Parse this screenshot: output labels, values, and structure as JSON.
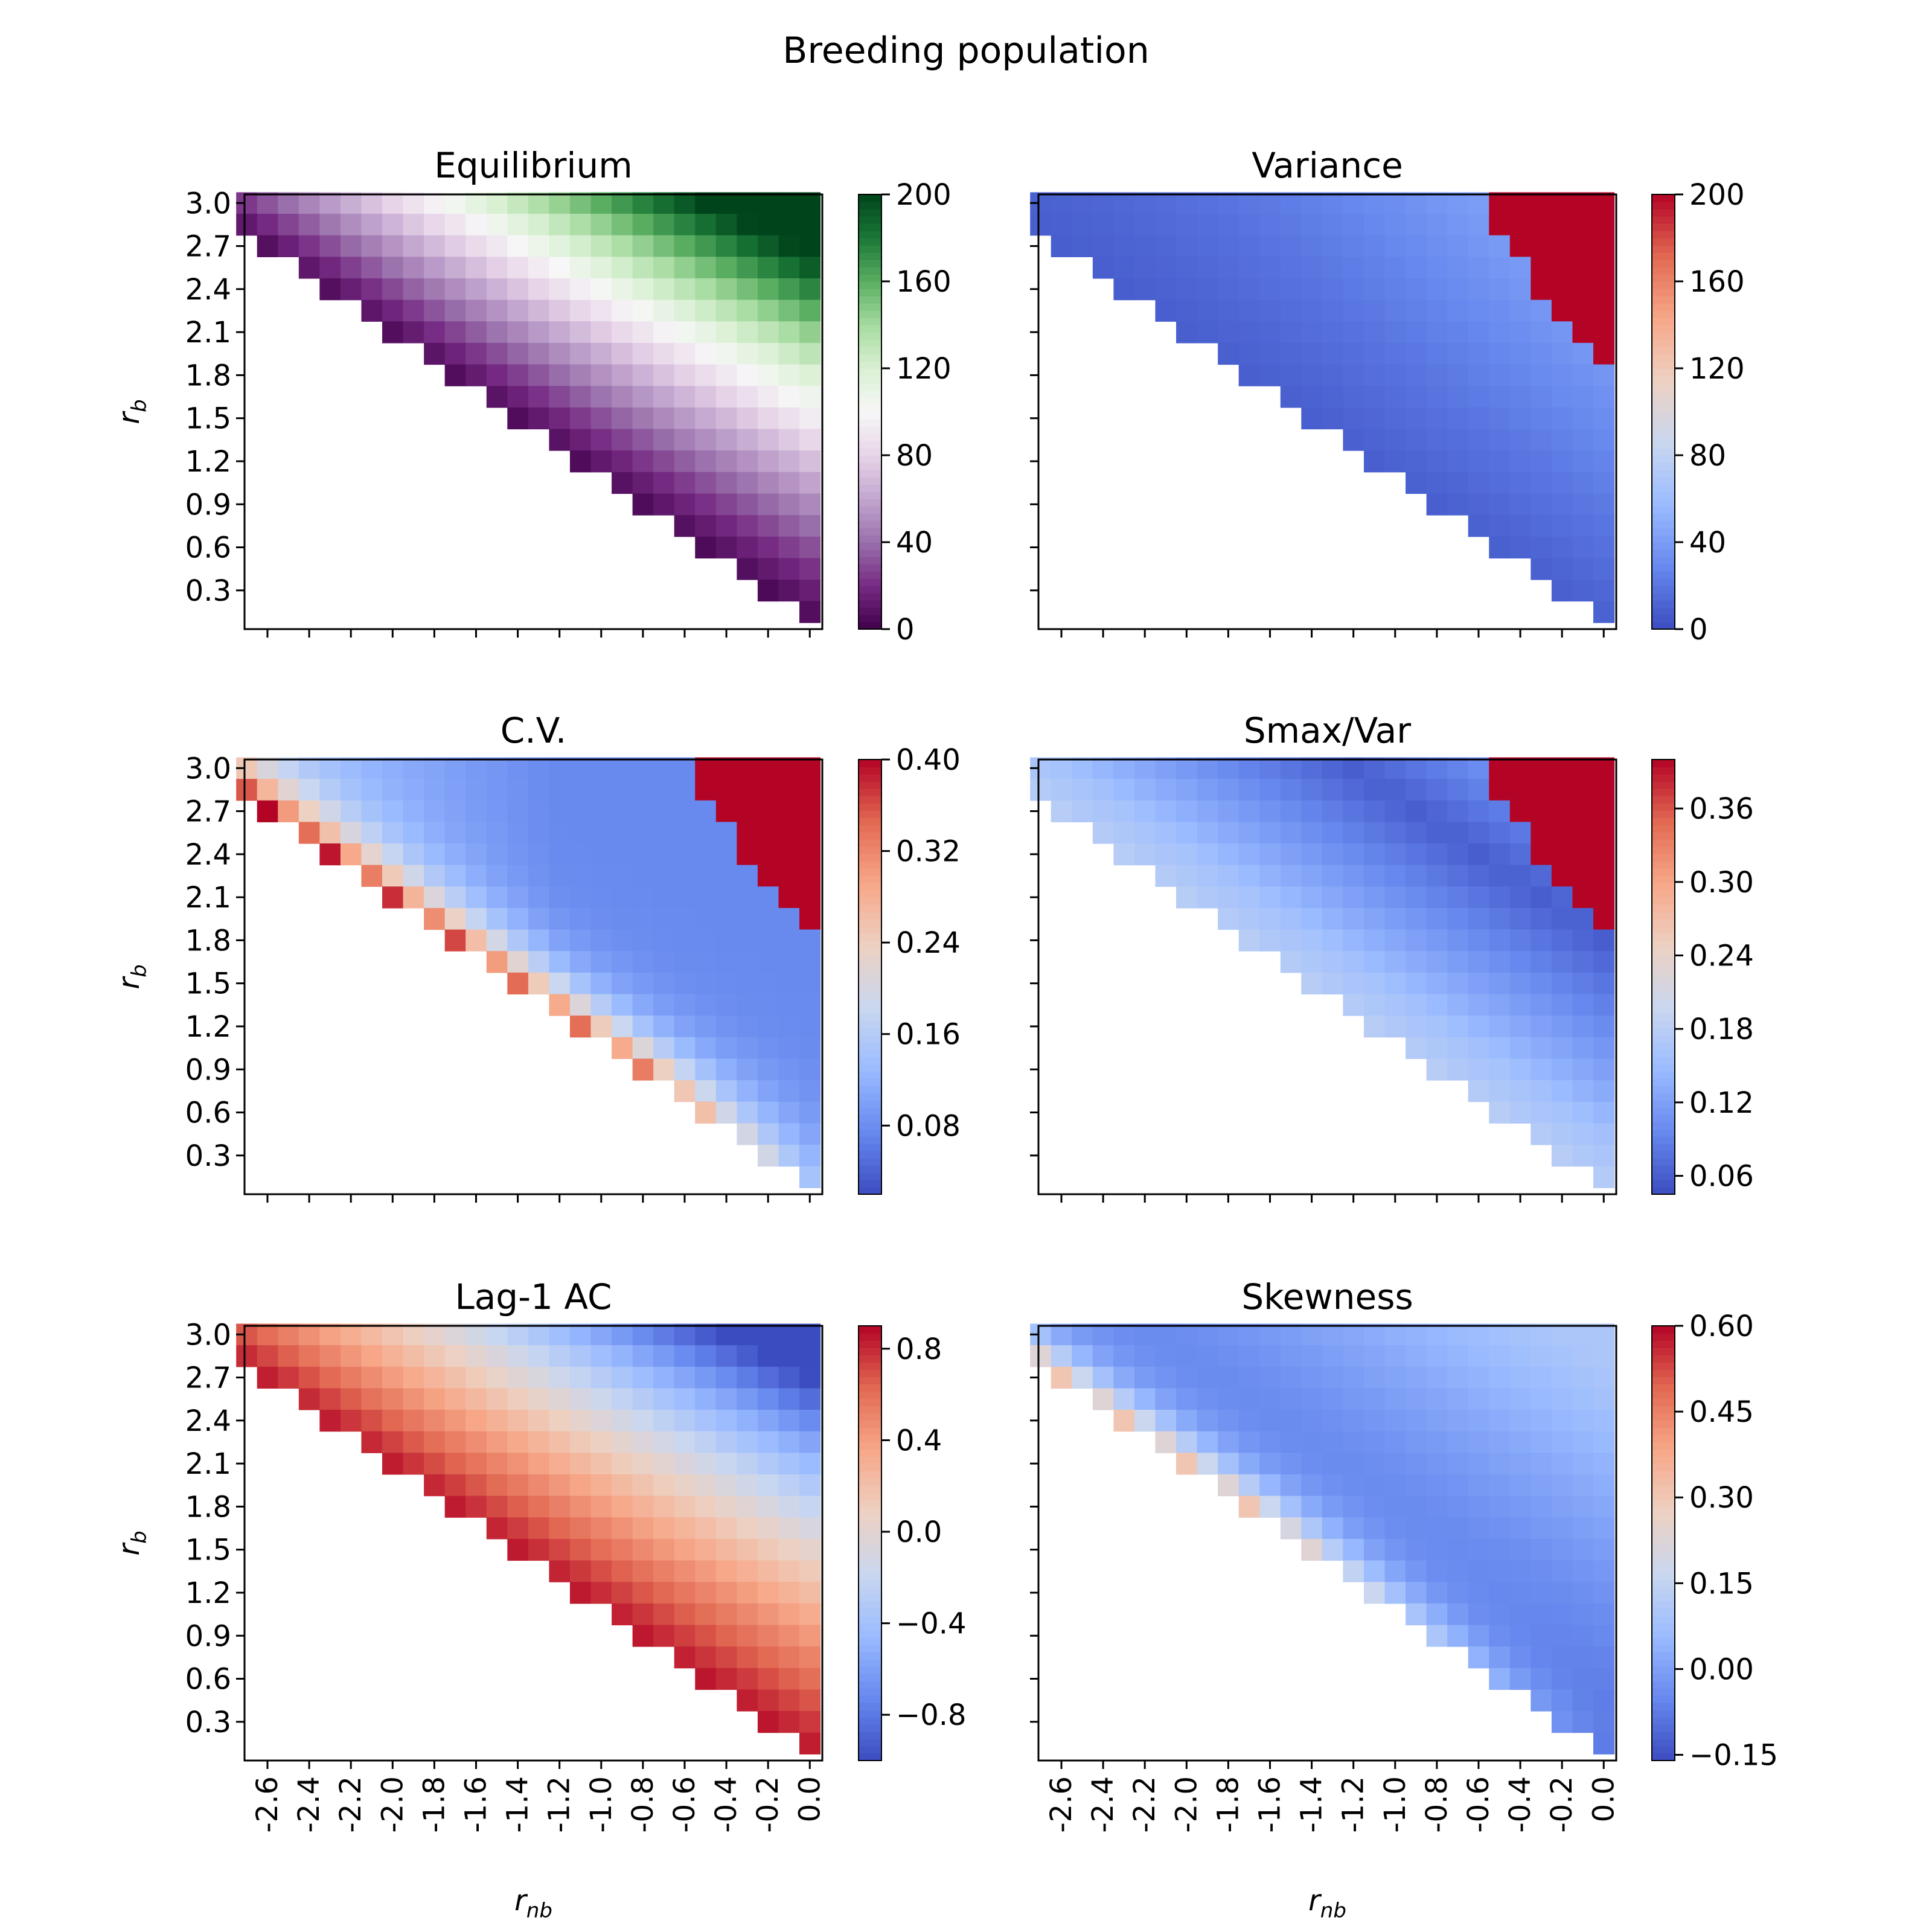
{
  "figure": {
    "title": "Breeding population"
  },
  "chart_data": [
    {
      "type": "heatmap",
      "title": "Equilibrium",
      "colormap": "PRGn (purple-white-green)",
      "xlabel": "",
      "ylabel": "r_b",
      "xticks": [
        "-2.6",
        "-2.4",
        "-2.2",
        "-2.0",
        "-1.8",
        "-1.6",
        "-1.4",
        "-1.2",
        "-1.0",
        "-0.8",
        "-0.6",
        "-0.4",
        "-0.2",
        "0.0"
      ],
      "yticks": [
        "3.0",
        "2.7",
        "2.4",
        "2.1",
        "1.8",
        "1.5",
        "1.2",
        "0.9",
        "0.6",
        "0.3"
      ],
      "show_xtick_labels": false,
      "show_ytick_labels": true,
      "colorbar": {
        "range": [
          0,
          200
        ],
        "ticks": [
          "0",
          "40",
          "80",
          "120",
          "160",
          "200"
        ]
      },
      "value_rule": "value rises from about 0 along the lower-left boundary to about 200 at upper right (r_nb = 0, r_b = 3.0)"
    },
    {
      "type": "heatmap",
      "title": "Variance",
      "colormap": "coolwarm",
      "xlabel": "",
      "ylabel": "",
      "xticks": [
        "-2.6",
        "-2.4",
        "-2.2",
        "-2.0",
        "-1.8",
        "-1.6",
        "-1.4",
        "-1.2",
        "-1.0",
        "-0.8",
        "-0.6",
        "-0.4",
        "-0.2",
        "0.0"
      ],
      "yticks": [
        "3.0",
        "2.7",
        "2.4",
        "2.1",
        "1.8",
        "1.5",
        "1.2",
        "0.9",
        "0.6",
        "0.3"
      ],
      "show_xtick_labels": false,
      "show_ytick_labels": false,
      "colorbar": {
        "range": [
          0,
          200
        ],
        "ticks": [
          "0",
          "40",
          "80",
          "120",
          "160",
          "200"
        ]
      },
      "value_rule": "values near 0-60 over most of the region; saturated (>200) in the upper-right triangle"
    },
    {
      "type": "heatmap",
      "title": "C.V.",
      "colormap": "coolwarm",
      "xlabel": "",
      "ylabel": "r_b",
      "xticks": [
        "-2.6",
        "-2.4",
        "-2.2",
        "-2.0",
        "-1.8",
        "-1.6",
        "-1.4",
        "-1.2",
        "-1.0",
        "-0.8",
        "-0.6",
        "-0.4",
        "-0.2",
        "0.0"
      ],
      "yticks": [
        "3.0",
        "2.7",
        "2.4",
        "2.1",
        "1.8",
        "1.5",
        "1.2",
        "0.9",
        "0.6",
        "0.3"
      ],
      "show_xtick_labels": false,
      "show_ytick_labels": true,
      "colorbar": {
        "range": [
          0.02,
          0.4
        ],
        "ticks": [
          "0.08",
          "0.16",
          "0.24",
          "0.32",
          "0.40"
        ]
      },
      "value_rule": "high (~0.4) along the lower-left boundary, low (~0.05) in the interior, saturated in the upper-right triangle"
    },
    {
      "type": "heatmap",
      "title": "Smax/Var",
      "colormap": "coolwarm",
      "xlabel": "",
      "ylabel": "",
      "xticks": [
        "-2.6",
        "-2.4",
        "-2.2",
        "-2.0",
        "-1.8",
        "-1.6",
        "-1.4",
        "-1.2",
        "-1.0",
        "-0.8",
        "-0.6",
        "-0.4",
        "-0.2",
        "0.0"
      ],
      "yticks": [
        "3.0",
        "2.7",
        "2.4",
        "2.1",
        "1.8",
        "1.5",
        "1.2",
        "0.9",
        "0.6",
        "0.3"
      ],
      "show_xtick_labels": false,
      "show_ytick_labels": false,
      "colorbar": {
        "range": [
          0.045,
          0.4
        ],
        "ticks": [
          "0.06",
          "0.12",
          "0.18",
          "0.24",
          "0.30",
          "0.36"
        ]
      },
      "value_rule": "about 0.15 near the lower-left boundary, minimum ~0.06 in a diagonal band, saturated in the upper-right triangle"
    },
    {
      "type": "heatmap",
      "title": "Lag-1 AC",
      "colormap": "coolwarm",
      "xlabel": "r_nb",
      "ylabel": "r_b",
      "xticks": [
        "-2.6",
        "-2.4",
        "-2.2",
        "-2.0",
        "-1.8",
        "-1.6",
        "-1.4",
        "-1.2",
        "-1.0",
        "-0.8",
        "-0.6",
        "-0.4",
        "-0.2",
        "0.0"
      ],
      "yticks": [
        "3.0",
        "2.7",
        "2.4",
        "2.1",
        "1.8",
        "1.5",
        "1.2",
        "0.9",
        "0.6",
        "0.3"
      ],
      "show_xtick_labels": true,
      "show_ytick_labels": true,
      "colorbar": {
        "range": [
          -1.0,
          0.9
        ],
        "ticks": [
          "−0.8",
          "−0.4",
          "0.0",
          "0.4",
          "0.8"
        ]
      },
      "value_rule": "about 0.9 along the lower-left boundary, decreasing to about -1.0 in the upper right"
    },
    {
      "type": "heatmap",
      "title": "Skewness",
      "colormap": "coolwarm",
      "xlabel": "r_nb",
      "ylabel": "",
      "xticks": [
        "-2.6",
        "-2.4",
        "-2.2",
        "-2.0",
        "-1.8",
        "-1.6",
        "-1.4",
        "-1.2",
        "-1.0",
        "-0.8",
        "-0.6",
        "-0.4",
        "-0.2",
        "0.0"
      ],
      "yticks": [
        "3.0",
        "2.7",
        "2.4",
        "2.1",
        "1.8",
        "1.5",
        "1.2",
        "0.9",
        "0.6",
        "0.3"
      ],
      "show_xtick_labels": true,
      "show_ytick_labels": false,
      "colorbar": {
        "range": [
          -0.16,
          0.6
        ],
        "ticks": [
          "−0.15",
          "0.00",
          "0.15",
          "0.30",
          "0.45",
          "0.60"
        ]
      },
      "value_rule": "about 0.6 at the top-left boundary, near 0 to -0.15 in the interior, about 0.05-0.1 in the upper right"
    }
  ],
  "colors": {
    "prgn": [
      "#00441b",
      "#1b7837",
      "#5aae61",
      "#a6dba0",
      "#d9f0d3",
      "#f7f7f7",
      "#e7d4e8",
      "#c2a5cf",
      "#9970ab",
      "#762a83",
      "#40004b"
    ],
    "coolwarm": [
      "#3b4cc0",
      "#6788ee",
      "#9abbff",
      "#c9d7f0",
      "#edd1c2",
      "#f7a889",
      "#e26952",
      "#b40426"
    ]
  }
}
